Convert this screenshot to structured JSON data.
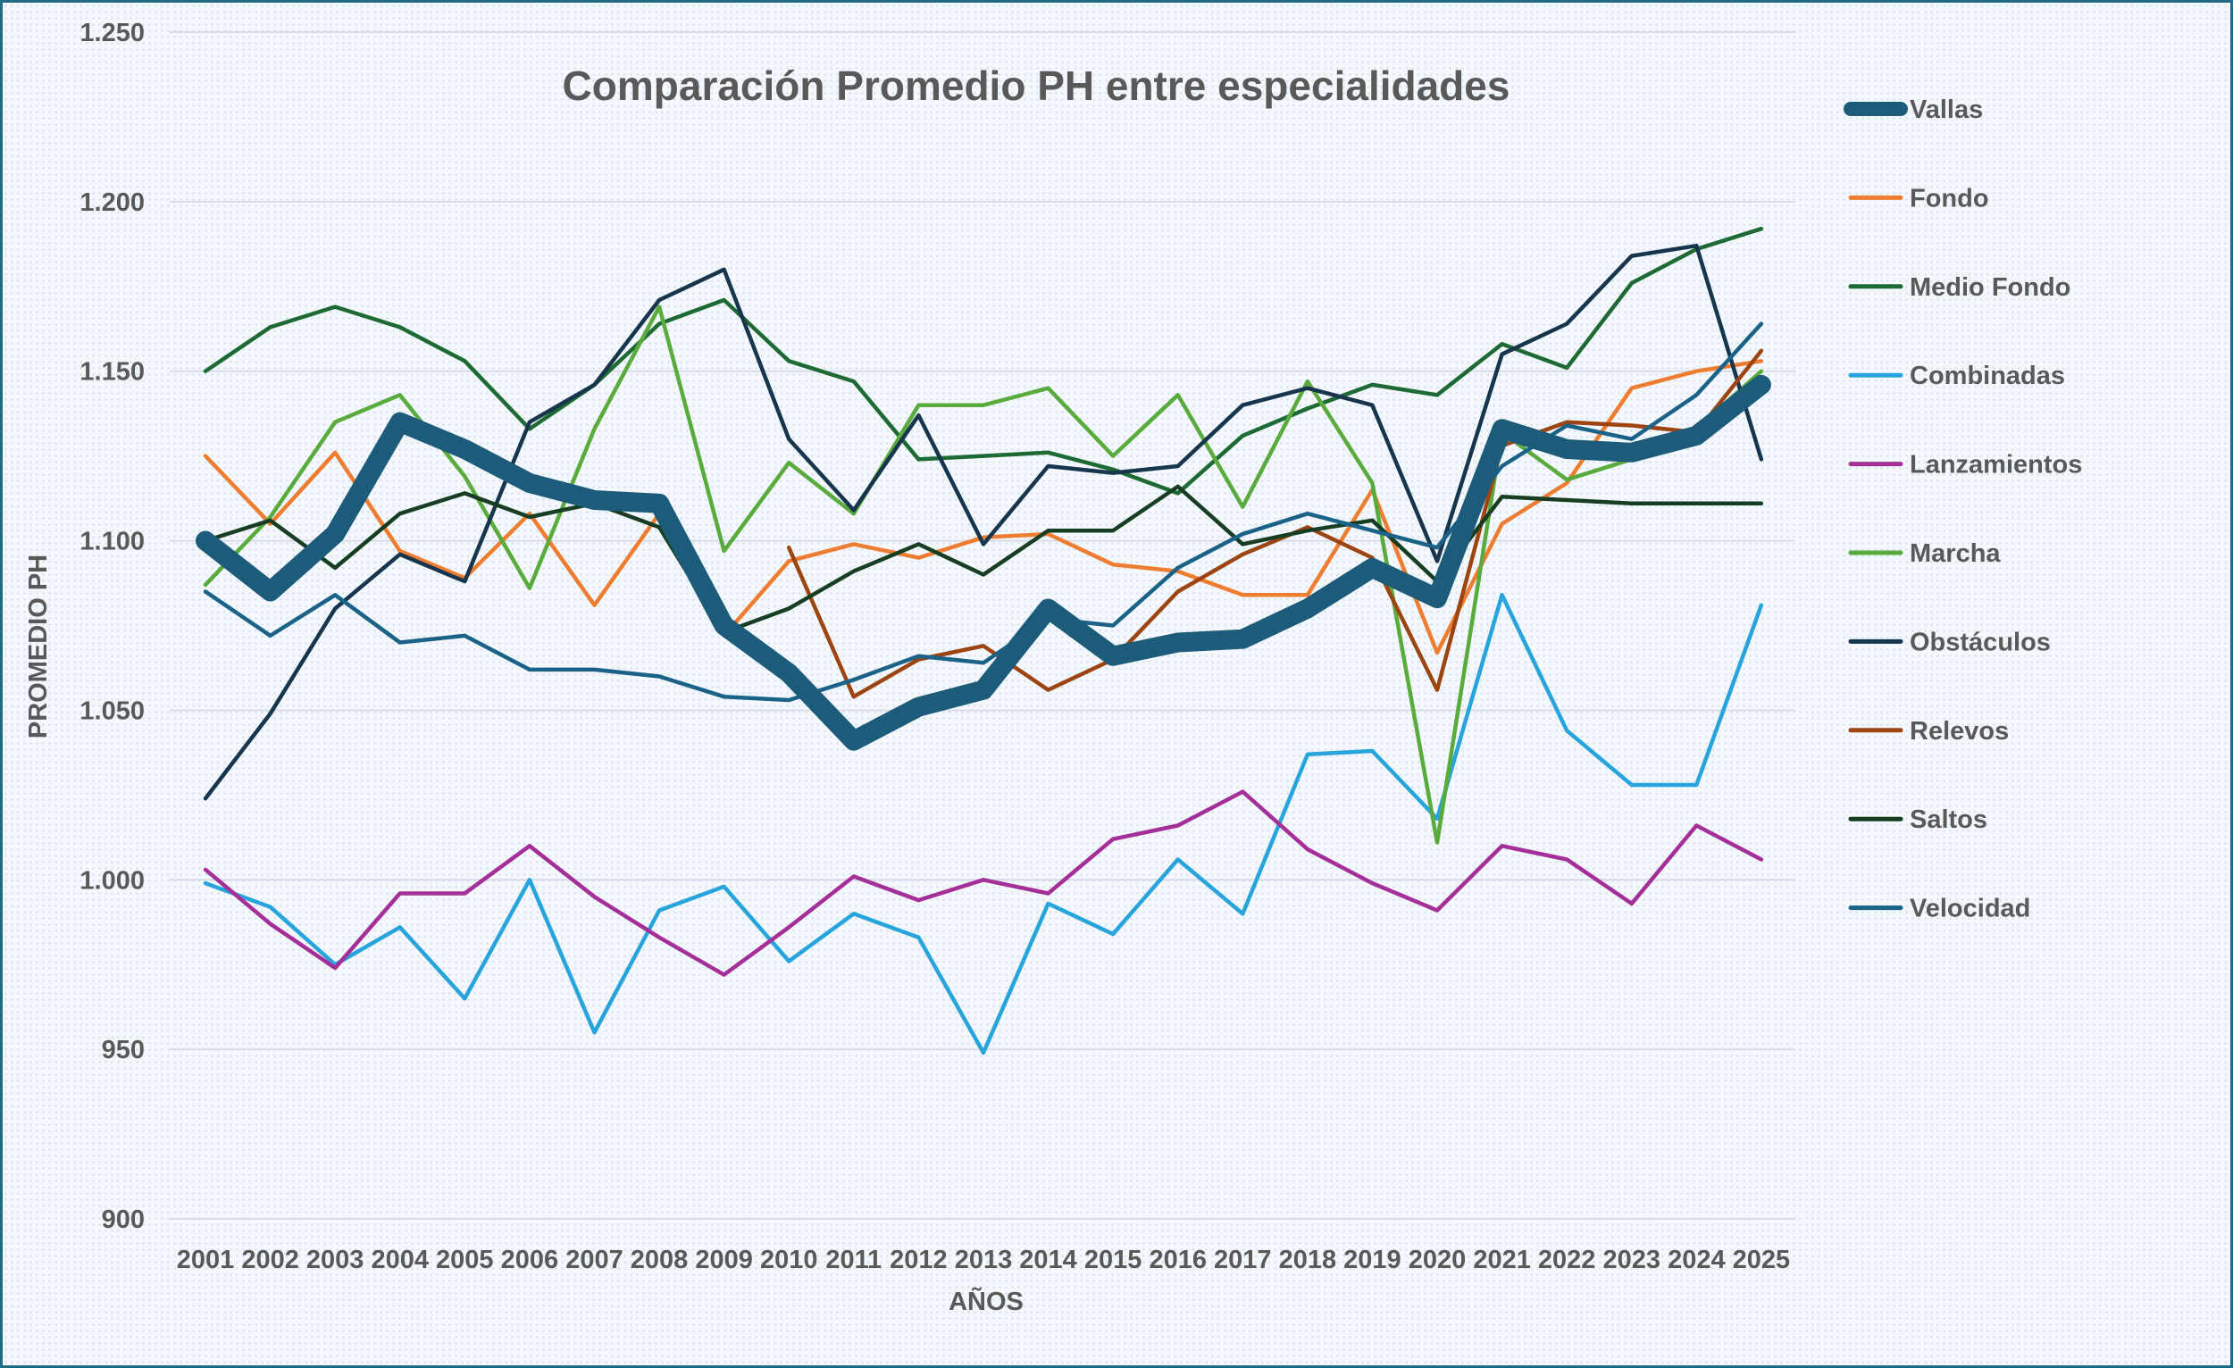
{
  "chart_data": {
    "type": "line",
    "title": "Comparación Promedio PH entre especialidades",
    "xlabel": "AÑOS",
    "ylabel": "PROMEDIO PH",
    "ylim": [
      900,
      1250
    ],
    "yticks": [
      900,
      950,
      1000,
      1050,
      1100,
      1150,
      1200,
      1250
    ],
    "ytick_labels": [
      "900",
      "950",
      "1.000",
      "1.050",
      "1.100",
      "1.150",
      "1.200",
      "1.250"
    ],
    "categories": [
      "2001",
      "2002",
      "2003",
      "2004",
      "2005",
      "2006",
      "2007",
      "2008",
      "2009",
      "2010",
      "2011",
      "2012",
      "2013",
      "2014",
      "2015",
      "2016",
      "2017",
      "2018",
      "2019",
      "2020",
      "2021",
      "2022",
      "2023",
      "2024",
      "2025"
    ],
    "legend_position": "right",
    "series": [
      {
        "name": "Vallas",
        "color": "#1d5b7a",
        "emphasis": true,
        "values": [
          1100,
          1085,
          1102,
          1135,
          1127,
          1117,
          1112,
          1111,
          1075,
          1061,
          1041,
          1051,
          1056,
          1080,
          1066,
          1070,
          1071,
          1080,
          1092,
          1083,
          1133,
          1127,
          1126,
          1131,
          1146
        ]
      },
      {
        "name": "Fondo",
        "color": "#ee7d31",
        "values": [
          1125,
          1105,
          1126,
          1097,
          1089,
          1108,
          1081,
          1108,
          1072,
          1094,
          1099,
          1095,
          1101,
          1102,
          1093,
          1091,
          1084,
          1084,
          1115,
          1067,
          1105,
          1117,
          1145,
          1150,
          1153
        ]
      },
      {
        "name": "Medio Fondo",
        "color": "#1e6a35",
        "values": [
          1150,
          1163,
          1169,
          1163,
          1153,
          1133,
          1146,
          1164,
          1171,
          1153,
          1147,
          1124,
          1125,
          1126,
          1121,
          1114,
          1131,
          1139,
          1146,
          1143,
          1158,
          1151,
          1176,
          1186,
          1192
        ]
      },
      {
        "name": "Combinadas",
        "color": "#28a4dc",
        "values": [
          999,
          992,
          975,
          986,
          965,
          1000,
          955,
          991,
          998,
          976,
          990,
          983,
          949,
          993,
          984,
          1006,
          990,
          1037,
          1038,
          1018,
          1084,
          1044,
          1028,
          1028,
          1081
        ]
      },
      {
        "name": "Lanzamientos",
        "color": "#a52f98",
        "values": [
          1003,
          987,
          974,
          996,
          996,
          1010,
          995,
          983,
          972,
          986,
          1001,
          994,
          1000,
          996,
          1012,
          1016,
          1026,
          1009,
          999,
          991,
          1010,
          1006,
          993,
          1016,
          1006
        ]
      },
      {
        "name": "Marcha",
        "color": "#5aab3d",
        "values": [
          1087,
          1107,
          1135,
          1143,
          1119,
          1086,
          1133,
          1169,
          1097,
          1123,
          1108,
          1140,
          1140,
          1145,
          1125,
          1143,
          1110,
          1147,
          1117,
          1011,
          1132,
          1118,
          1124,
          1133,
          1150
        ]
      },
      {
        "name": "Obstáculos",
        "color": "#17354d",
        "values": [
          1024,
          1049,
          1080,
          1096,
          1088,
          1135,
          1146,
          1171,
          1180,
          1130,
          1109,
          1137,
          1099,
          1122,
          1120,
          1122,
          1140,
          1145,
          1140,
          1094,
          1155,
          1164,
          1184,
          1187,
          1124
        ]
      },
      {
        "name": "Relevos",
        "color": "#9c4512",
        "values": [
          null,
          null,
          null,
          null,
          null,
          null,
          null,
          null,
          null,
          1098,
          1054,
          1065,
          1069,
          1056,
          1065,
          1085,
          1096,
          1104,
          1095,
          1056,
          1128,
          1135,
          1134,
          1132,
          1156
        ]
      },
      {
        "name": "Saltos",
        "color": "#173e22",
        "values": [
          1100,
          1106,
          1092,
          1108,
          1114,
          1107,
          1111,
          1104,
          1073,
          1080,
          1091,
          1099,
          1090,
          1103,
          1103,
          1116,
          1099,
          1103,
          1106,
          1088,
          1113,
          1112,
          1111,
          1111,
          1111
        ]
      },
      {
        "name": "Velocidad",
        "color": "#1a6287",
        "values": [
          1085,
          1072,
          1084,
          1070,
          1072,
          1062,
          1062,
          1060,
          1054,
          1053,
          1059,
          1066,
          1064,
          1077,
          1075,
          1092,
          1102,
          1108,
          1103,
          1098,
          1122,
          1134,
          1130,
          1143,
          1164
        ]
      }
    ]
  }
}
